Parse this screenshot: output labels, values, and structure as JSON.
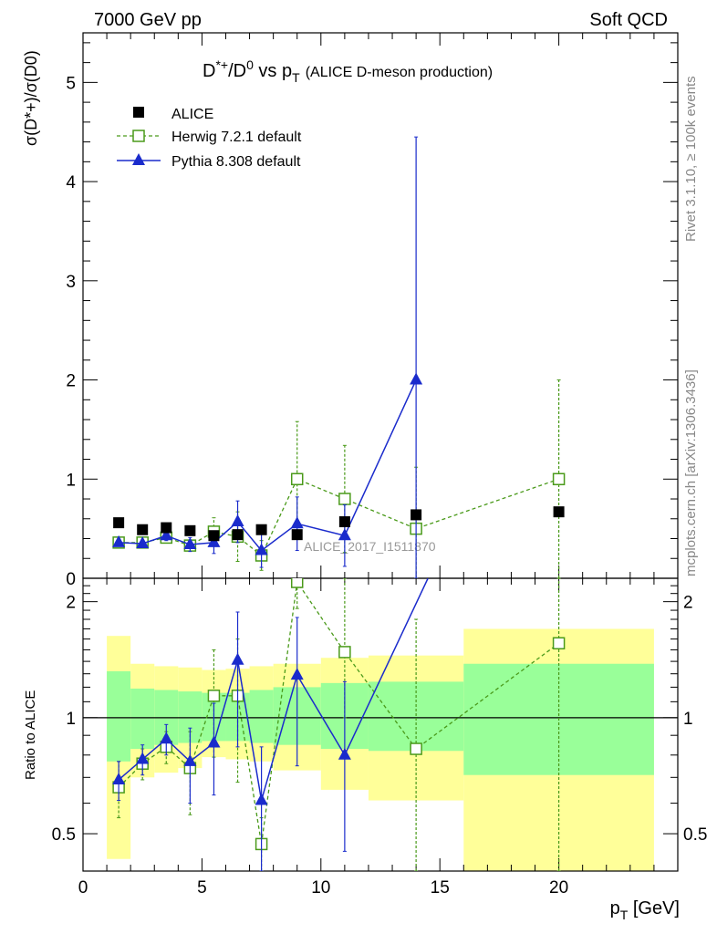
{
  "header": {
    "left": "7000 GeV pp",
    "right": "Soft QCD"
  },
  "side_labels": {
    "rivet": "Rivet 3.1.10, ≥ 100k events",
    "mcplots": "mcplots.cern.ch [arXiv:1306.3436]"
  },
  "chart_data": [
    {
      "type": "scatter",
      "panel": "main",
      "title_parts": {
        "a": "D",
        "a_sup": "*+",
        "b": "/D",
        "b_sup": "0",
        "c": " vs p",
        "c_sub": "T",
        "paren": "(ALICE D-meson production)"
      },
      "ylabel_text": "σ(D*+)/σ(D0)",
      "analysis_label": "ALICE_2017_I1511870",
      "ylim": [
        0,
        5.5
      ],
      "xlim": [
        0,
        25
      ],
      "yticks": [
        0,
        1,
        2,
        3,
        4,
        5
      ],
      "y_tick_labels": [
        "0",
        "1",
        "2",
        "3",
        "4",
        "5"
      ],
      "legend_position": "top-left",
      "series": [
        {
          "name": "ALICE",
          "color": "#000000",
          "marker": "filled-square",
          "x": [
            1.5,
            2.5,
            3.5,
            4.5,
            5.5,
            6.5,
            7.5,
            9,
            11,
            14,
            20
          ],
          "y": [
            0.56,
            0.49,
            0.51,
            0.48,
            0.43,
            0.44,
            0.49,
            0.44,
            0.57,
            0.64,
            0.67
          ]
        },
        {
          "name": "Herwig 7.2.1 default",
          "color": "#4a9a1a",
          "marker": "open-square",
          "line": "dashed",
          "x": [
            1.5,
            2.5,
            3.5,
            4.5,
            5.5,
            6.5,
            7.5,
            9,
            11,
            14,
            20
          ],
          "y": [
            0.36,
            0.36,
            0.41,
            0.33,
            0.47,
            0.42,
            0.23,
            1.0,
            0.8,
            0.5,
            1.0
          ],
          "err": [
            0.04,
            0.04,
            0.05,
            0.05,
            0.14,
            0.25,
            0.15,
            0.58,
            0.54,
            0.62,
            1.0
          ]
        },
        {
          "name": "Pythia 8.308 default",
          "color": "#1a2bcc",
          "marker": "filled-triangle",
          "line": "solid",
          "x": [
            1.5,
            2.5,
            3.5,
            4.5,
            5.5,
            6.5,
            7.5,
            9,
            11,
            14
          ],
          "y": [
            0.36,
            0.35,
            0.43,
            0.34,
            0.36,
            0.57,
            0.28,
            0.55,
            0.43,
            2.0
          ],
          "err": [
            0.03,
            0.03,
            0.05,
            0.07,
            0.11,
            0.21,
            0.17,
            0.27,
            0.31,
            2.45
          ]
        }
      ]
    },
    {
      "type": "scatter",
      "panel": "ratio",
      "ylabel": "Ratio to ALICE",
      "xlabel_text": "pT [GeV]",
      "xlabel_parts": {
        "p": "p",
        "sub": "T",
        "unit": " [GeV]"
      },
      "ylim": [
        0.4,
        2.3
      ],
      "ylog": true,
      "xlim": [
        0,
        25
      ],
      "xticks": [
        0,
        5,
        10,
        15,
        20
      ],
      "x_tick_labels": [
        "0",
        "5",
        "10",
        "15",
        "20"
      ],
      "y_tick_values": [
        0.5,
        1,
        2
      ],
      "y_tick_labels": [
        "0.5",
        "1",
        "2"
      ],
      "bands": [
        {
          "x0": 1,
          "x1": 2,
          "inner": [
            0.77,
            1.32
          ],
          "outer": [
            0.43,
            1.63
          ]
        },
        {
          "x0": 2,
          "x1": 3,
          "inner": [
            0.83,
            1.19
          ],
          "outer": [
            0.7,
            1.38
          ]
        },
        {
          "x0": 3,
          "x1": 4,
          "inner": [
            0.85,
            1.18
          ],
          "outer": [
            0.72,
            1.36
          ]
        },
        {
          "x0": 4,
          "x1": 5,
          "inner": [
            0.86,
            1.17
          ],
          "outer": [
            0.74,
            1.35
          ]
        },
        {
          "x0": 5,
          "x1": 6,
          "inner": [
            0.87,
            1.16
          ],
          "outer": [
            0.79,
            1.33
          ]
        },
        {
          "x0": 6,
          "x1": 7,
          "inner": [
            0.87,
            1.16
          ],
          "outer": [
            0.78,
            1.34
          ]
        },
        {
          "x0": 7,
          "x1": 8,
          "inner": [
            0.86,
            1.18
          ],
          "outer": [
            0.77,
            1.36
          ]
        },
        {
          "x0": 8,
          "x1": 10,
          "inner": [
            0.85,
            1.2
          ],
          "outer": [
            0.73,
            1.38
          ]
        },
        {
          "x0": 10,
          "x1": 12,
          "inner": [
            0.83,
            1.23
          ],
          "outer": [
            0.65,
            1.43
          ]
        },
        {
          "x0": 12,
          "x1": 16,
          "inner": [
            0.82,
            1.24
          ],
          "outer": [
            0.61,
            1.45
          ]
        },
        {
          "x0": 16,
          "x1": 24,
          "inner": [
            0.71,
            1.38
          ],
          "outer": [
            0.35,
            1.7
          ]
        }
      ],
      "series": [
        {
          "name": "Herwig 7.2.1 default",
          "color": "#4a9a1a",
          "x": [
            1.5,
            2.5,
            3.5,
            4.5,
            5.5,
            6.5,
            7.5,
            9,
            11,
            14,
            20
          ],
          "y": [
            0.66,
            0.76,
            0.84,
            0.74,
            1.14,
            1.14,
            0.47,
            2.25,
            1.48,
            0.83,
            1.56
          ],
          "lo": [
            0.55,
            0.69,
            0.76,
            0.56,
            0.79,
            0.68,
            0.4,
            1.92,
            1.0,
            0.4,
            0.4
          ],
          "hi": [
            0.77,
            0.83,
            0.92,
            0.92,
            1.5,
            1.6,
            0.55,
            2.3,
            2.3,
            1.8,
            2.3
          ]
        },
        {
          "name": "Pythia 8.308 default",
          "color": "#1a2bcc",
          "x": [
            1.5,
            2.5,
            3.5,
            4.5,
            5.5,
            6.5,
            7.5,
            9,
            11,
            14.5
          ],
          "y": [
            0.69,
            0.78,
            0.88,
            0.77,
            0.86,
            1.41,
            0.61,
            1.29,
            0.8,
            2.3
          ],
          "lo": [
            0.61,
            0.71,
            0.8,
            0.6,
            0.63,
            0.84,
            0.4,
            0.75,
            0.45,
            2.3
          ],
          "hi": [
            0.77,
            0.85,
            0.96,
            0.94,
            1.09,
            1.88,
            0.84,
            1.82,
            1.24,
            2.3
          ]
        }
      ]
    }
  ]
}
